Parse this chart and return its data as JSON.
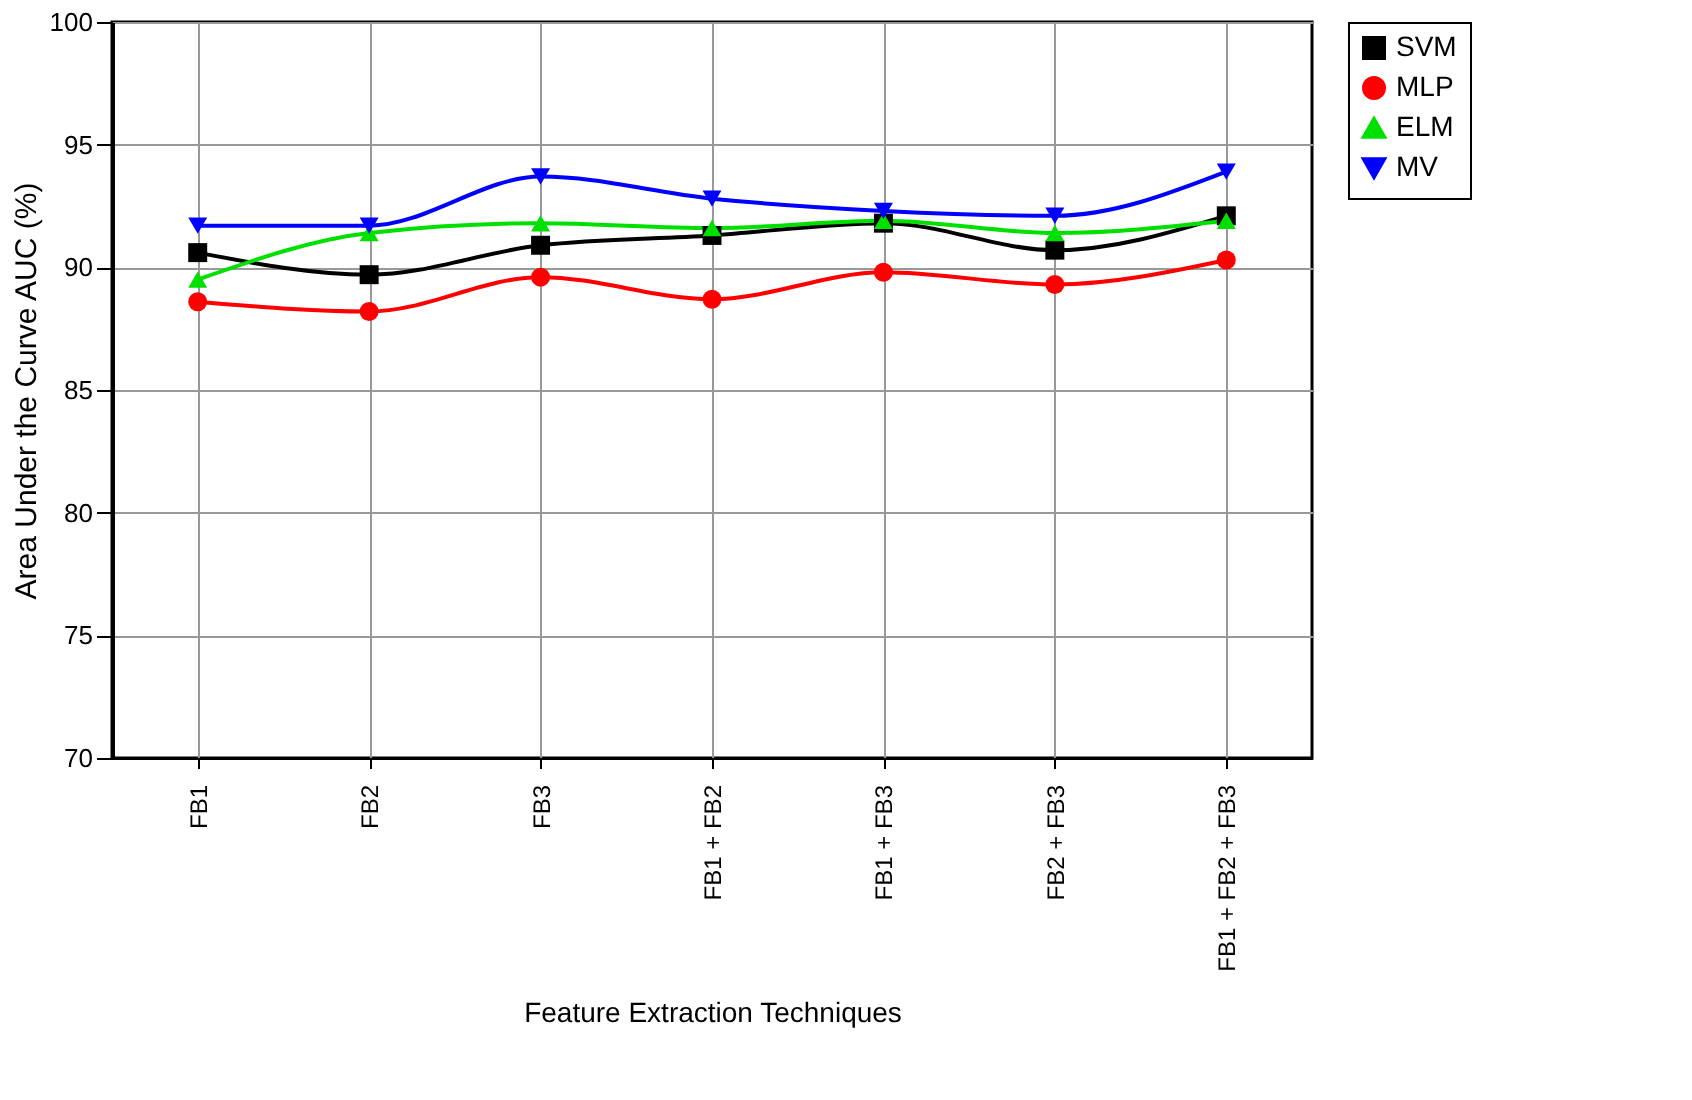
{
  "chart_data": {
    "type": "line",
    "xlabel": "Feature Extraction Techniques",
    "ylabel": "Area Under the Curve AUC (%)",
    "categories": [
      "FB1",
      "FB2",
      "FB3",
      "FB1 + FB2",
      "FB1 + FB3",
      "FB2 + FB3",
      "FB1 + FB2 + FB3"
    ],
    "ylim": [
      70,
      100
    ],
    "yticks": [
      70,
      75,
      80,
      85,
      90,
      95,
      100
    ],
    "grid": true,
    "legend": "right",
    "series": [
      {
        "name": "SVM",
        "color": "#000000",
        "marker": "square",
        "values": [
          90.6,
          89.7,
          90.9,
          91.3,
          91.8,
          90.7,
          92.1
        ]
      },
      {
        "name": "MLP",
        "color": "#ff0000",
        "marker": "circle",
        "values": [
          88.6,
          88.2,
          89.6,
          88.7,
          89.8,
          89.3,
          90.3
        ]
      },
      {
        "name": "ELM",
        "color": "#00e000",
        "marker": "triangle",
        "values": [
          89.5,
          91.4,
          91.8,
          91.6,
          91.9,
          91.4,
          91.9
        ]
      },
      {
        "name": "MV",
        "color": "#0000ff",
        "marker": "triangle-down",
        "values": [
          91.7,
          91.7,
          93.7,
          92.8,
          92.3,
          92.1,
          93.9
        ]
      }
    ]
  }
}
